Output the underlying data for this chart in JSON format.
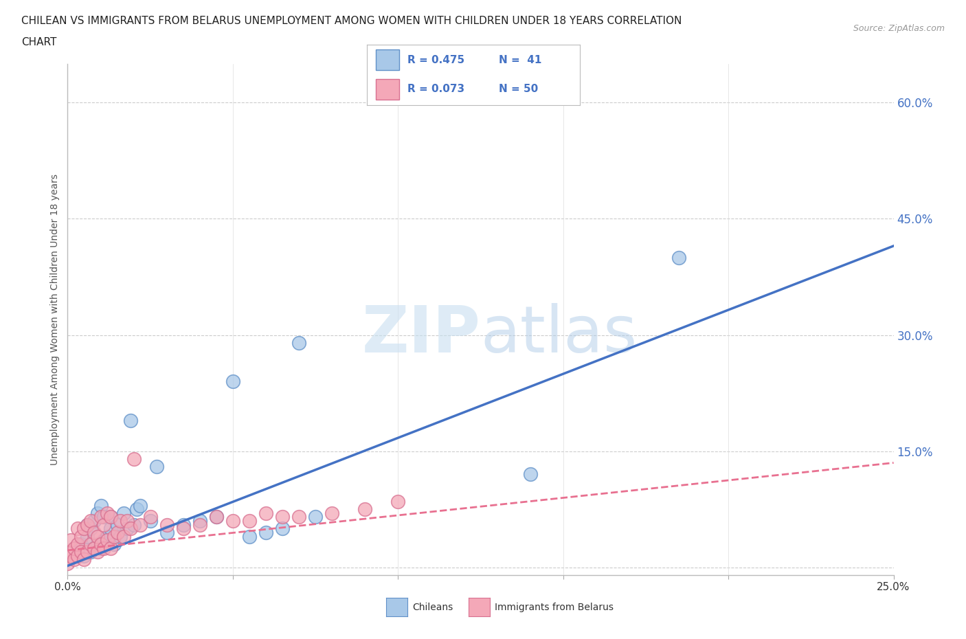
{
  "title_line1": "CHILEAN VS IMMIGRANTS FROM BELARUS UNEMPLOYMENT AMONG WOMEN WITH CHILDREN UNDER 18 YEARS CORRELATION",
  "title_line2": "CHART",
  "source": "Source: ZipAtlas.com",
  "ylabel": "Unemployment Among Women with Children Under 18 years",
  "xlim": [
    0.0,
    0.25
  ],
  "ylim": [
    -0.01,
    0.65
  ],
  "xticks": [
    0.0,
    0.05,
    0.1,
    0.15,
    0.2,
    0.25
  ],
  "xtick_labels": [
    "0.0%",
    "",
    "",
    "",
    "",
    "25.0%"
  ],
  "yticks": [
    0.0,
    0.15,
    0.3,
    0.45,
    0.6
  ],
  "ytick_labels": [
    "",
    "15.0%",
    "30.0%",
    "45.0%",
    "60.0%"
  ],
  "legend_r1": "R = 0.475",
  "legend_n1": "N =  41",
  "legend_r2": "R = 0.073",
  "legend_n2": "N = 50",
  "chilean_color": "#A8C8E8",
  "belarus_color": "#F4A8B8",
  "chilean_edge_color": "#6090C8",
  "belarus_edge_color": "#D87090",
  "trend_chilean_color": "#4472C4",
  "trend_belarus_color": "#E87090",
  "watermark_color": "#C8DFF0",
  "background_color": "#FFFFFF",
  "grid_color": "#CCCCCC",
  "chilean_x": [
    0.003,
    0.004,
    0.005,
    0.006,
    0.006,
    0.007,
    0.007,
    0.008,
    0.008,
    0.009,
    0.009,
    0.01,
    0.01,
    0.011,
    0.011,
    0.012,
    0.013,
    0.013,
    0.014,
    0.015,
    0.016,
    0.017,
    0.018,
    0.019,
    0.02,
    0.021,
    0.022,
    0.025,
    0.027,
    0.03,
    0.035,
    0.04,
    0.045,
    0.05,
    0.055,
    0.06,
    0.065,
    0.07,
    0.075,
    0.14,
    0.185
  ],
  "chilean_y": [
    0.02,
    0.03,
    0.015,
    0.04,
    0.055,
    0.02,
    0.05,
    0.025,
    0.06,
    0.03,
    0.07,
    0.025,
    0.08,
    0.035,
    0.065,
    0.04,
    0.05,
    0.065,
    0.03,
    0.055,
    0.04,
    0.07,
    0.05,
    0.19,
    0.055,
    0.075,
    0.08,
    0.06,
    0.13,
    0.045,
    0.055,
    0.06,
    0.065,
    0.24,
    0.04,
    0.045,
    0.05,
    0.29,
    0.065,
    0.12,
    0.4
  ],
  "belarus_x": [
    0.0,
    0.0,
    0.001,
    0.001,
    0.002,
    0.002,
    0.003,
    0.003,
    0.003,
    0.004,
    0.004,
    0.005,
    0.005,
    0.006,
    0.006,
    0.007,
    0.007,
    0.008,
    0.008,
    0.009,
    0.009,
    0.01,
    0.01,
    0.011,
    0.011,
    0.012,
    0.012,
    0.013,
    0.013,
    0.014,
    0.015,
    0.016,
    0.017,
    0.018,
    0.019,
    0.02,
    0.022,
    0.025,
    0.03,
    0.035,
    0.04,
    0.045,
    0.05,
    0.055,
    0.06,
    0.065,
    0.07,
    0.08,
    0.09,
    0.1
  ],
  "belarus_y": [
    0.005,
    0.02,
    0.015,
    0.035,
    0.01,
    0.025,
    0.015,
    0.03,
    0.05,
    0.02,
    0.04,
    0.01,
    0.05,
    0.02,
    0.055,
    0.03,
    0.06,
    0.025,
    0.045,
    0.02,
    0.04,
    0.03,
    0.065,
    0.025,
    0.055,
    0.035,
    0.07,
    0.025,
    0.065,
    0.04,
    0.045,
    0.06,
    0.04,
    0.06,
    0.05,
    0.14,
    0.055,
    0.065,
    0.055,
    0.05,
    0.055,
    0.065,
    0.06,
    0.06,
    0.07,
    0.065,
    0.065,
    0.07,
    0.075,
    0.085
  ],
  "chilean_trend_x": [
    0.0,
    0.25
  ],
  "chilean_trend_y": [
    0.002,
    0.415
  ],
  "belarus_trend_x": [
    0.0,
    0.25
  ],
  "belarus_trend_y": [
    0.022,
    0.135
  ]
}
